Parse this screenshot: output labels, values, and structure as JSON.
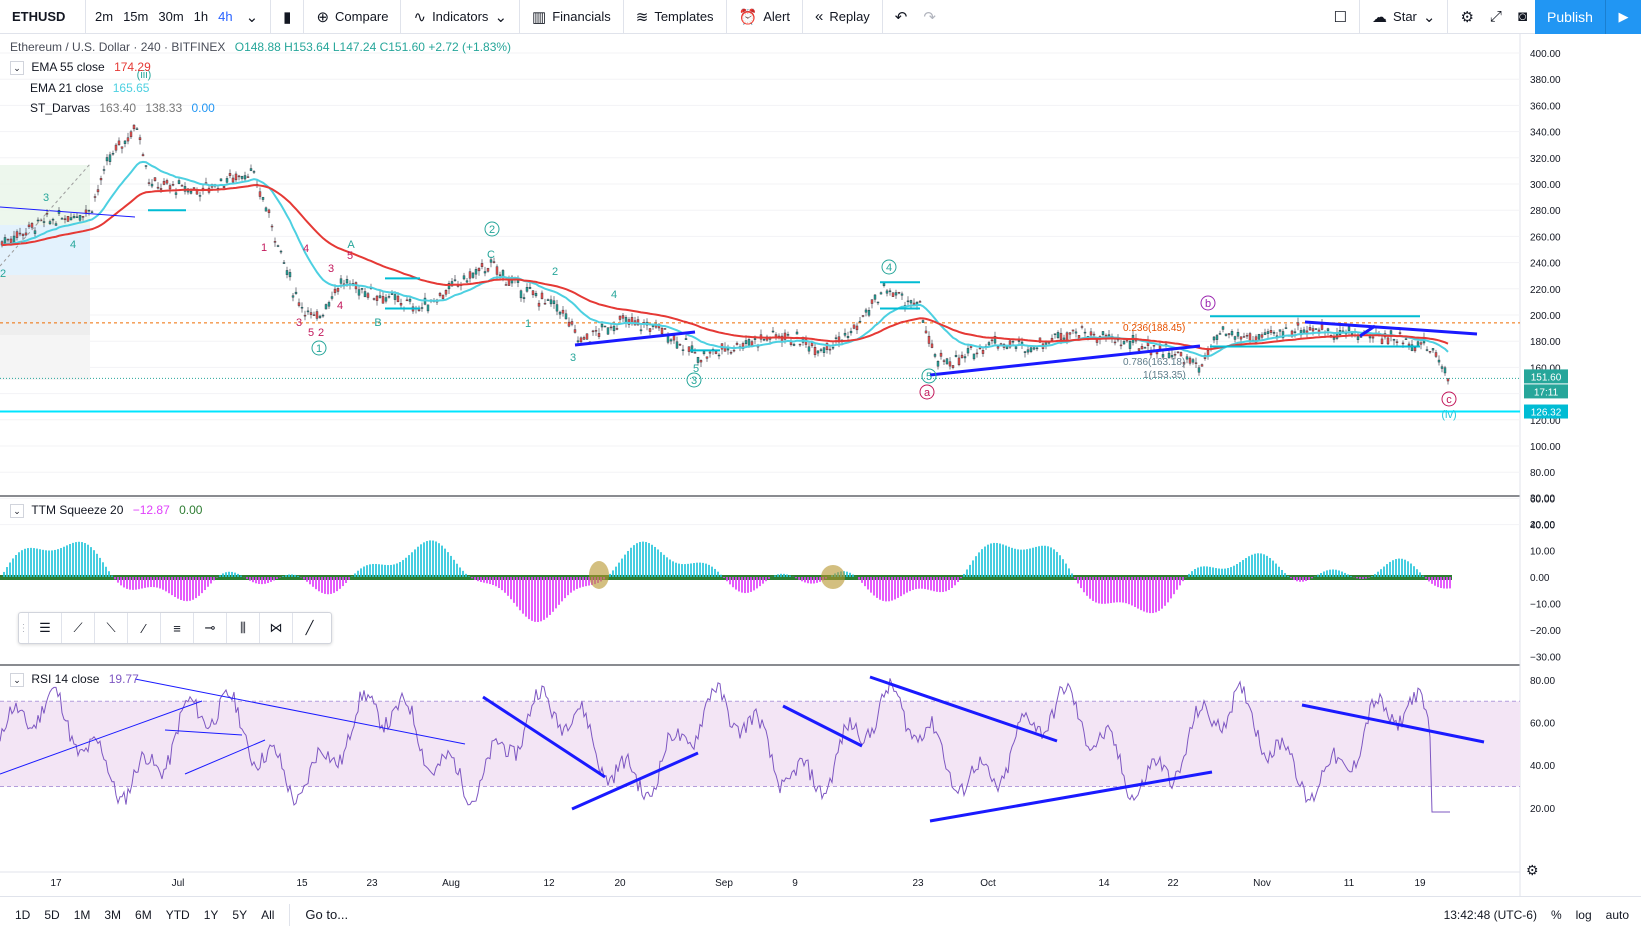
{
  "toolbar": {
    "symbol": "ETHUSD",
    "timeframes": [
      "2m",
      "15m",
      "30m",
      "1h",
      "4h"
    ],
    "active_timeframe": "4h",
    "compare": "Compare",
    "indicators": "Indicators",
    "financials": "Financials",
    "templates": "Templates",
    "alert": "Alert",
    "replay": "Replay",
    "star": "Star",
    "publish": "Publish"
  },
  "main_legend": {
    "title": "Ethereum / U.S. Dollar · 240 · BITFINEX",
    "open": "O148.88",
    "high": "H153.64",
    "low": "L147.24",
    "close": "C151.60",
    "change": "+2.72 (+1.83%)",
    "ema55_label": "EMA 55 close",
    "ema55_value": "174.29",
    "ema21_label": "EMA 21 close",
    "ema21_value": "165.65",
    "darvas_label": "ST_Darvas",
    "darvas_v1": "163.40",
    "darvas_v2": "138.33",
    "darvas_v3": "0.00"
  },
  "ttm_legend": {
    "label": "TTM Squeeze 20",
    "v1": "−12.87",
    "v2": "0.00"
  },
  "rsi_legend": {
    "label": "RSI 14 close",
    "value": "19.77"
  },
  "price_axis": [
    "400.00",
    "380.00",
    "360.00",
    "340.00",
    "320.00",
    "300.00",
    "280.00",
    "260.00",
    "240.00",
    "220.00",
    "200.00",
    "180.00",
    "160.00",
    "140.00",
    "120.00",
    "100.00",
    "80.00",
    "60.00",
    "40.00"
  ],
  "price_badges": {
    "last": "151.60",
    "countdown": "17:11",
    "line": "126.32"
  },
  "ttm_axis": [
    "30.00",
    "20.00",
    "10.00",
    "0.00",
    "−10.00",
    "−20.00",
    "−30.00"
  ],
  "rsi_axis": [
    "80.00",
    "60.00",
    "40.00",
    "20.00"
  ],
  "time_axis": [
    "17",
    "Jul",
    "15",
    "23",
    "Aug",
    "12",
    "20",
    "Sep",
    "9",
    "23",
    "Oct",
    "14",
    "22",
    "Nov",
    "11",
    "19"
  ],
  "fib_labels": [
    "0.236(188.45)",
    "0.786(163.18)",
    "1(153.35)"
  ],
  "wave_labels": {
    "w_iii": "(iii)",
    "w_iv": "(iv)",
    "c1": "1",
    "c2": "2",
    "c3": "3",
    "c4": "4",
    "c5": "5",
    "a_big": "a",
    "b_big": "b",
    "c_big": "c",
    "A": "A",
    "B": "B",
    "C": "C",
    "n1": "1",
    "n2": "2",
    "n3": "3",
    "n4": "4",
    "n5": "5"
  },
  "ranges": [
    "1D",
    "5D",
    "1M",
    "3M",
    "6M",
    "YTD",
    "1Y",
    "5Y",
    "All"
  ],
  "goto": "Go to...",
  "clock": "13:42:48 (UTC-6)",
  "bottom_right": [
    "%",
    "log",
    "auto"
  ],
  "colors": {
    "ema55": "#e53935",
    "ema21": "#4dd0e1",
    "darvas": "#00bcd4",
    "hist_pos": "#26c6da",
    "hist_neg": "#e040fb",
    "rsi": "#7e57c2",
    "trend": "#1a1aff",
    "wave_pink": "#c2185b"
  }
}
